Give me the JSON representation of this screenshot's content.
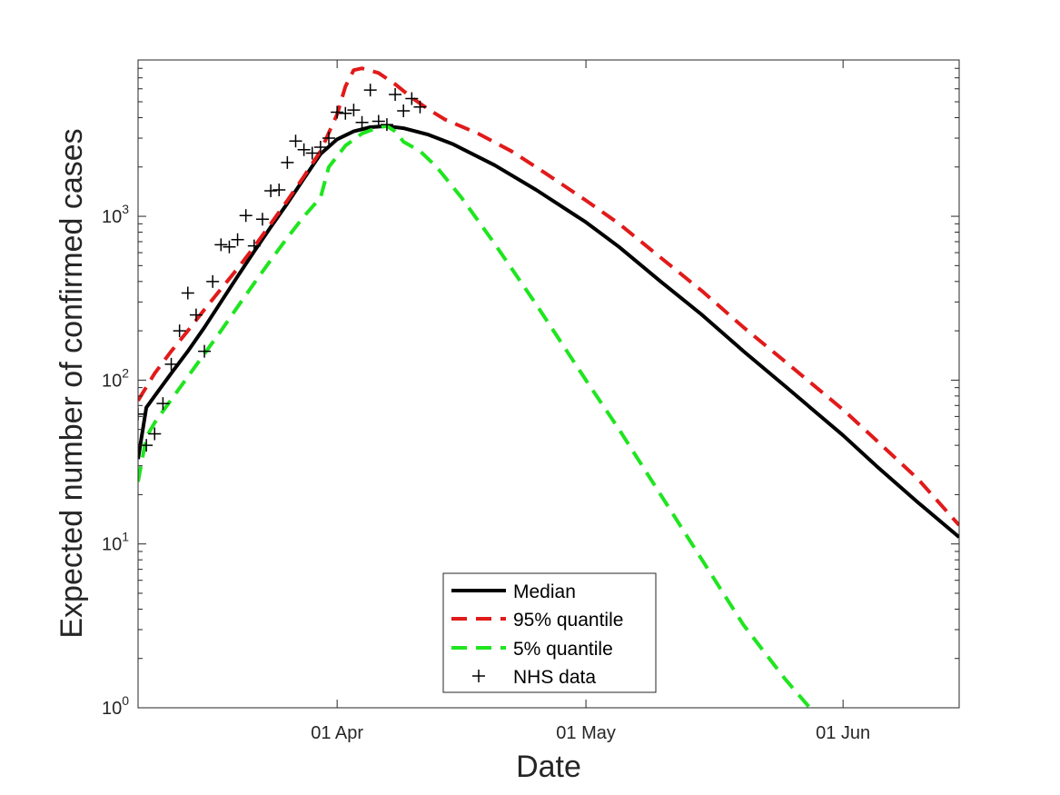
{
  "chart_data": {
    "type": "line",
    "xlabel": "Date",
    "ylabel": "Expected number of confirmed cases",
    "yscale": "log",
    "xlim": [
      "2020-03-08",
      "2020-06-15"
    ],
    "ylim": [
      1,
      9000
    ],
    "grid": false,
    "legend_position": "bottom-center",
    "x_ticks": [
      {
        "date": "2020-04-01",
        "label": "01 Apr"
      },
      {
        "date": "2020-05-01",
        "label": "01 May"
      },
      {
        "date": "2020-06-01",
        "label": "01 Jun"
      }
    ],
    "y_ticks": [
      {
        "value": 1,
        "base": "10",
        "exp": "0"
      },
      {
        "value": 10,
        "base": "10",
        "exp": "1"
      },
      {
        "value": 100,
        "base": "10",
        "exp": "2"
      },
      {
        "value": 1000,
        "base": "10",
        "exp": "3"
      }
    ],
    "series": [
      {
        "name": "Median",
        "color": "#000000",
        "style": "solid",
        "points": [
          [
            "2020-03-08",
            33
          ],
          [
            "2020-03-09",
            68
          ],
          [
            "2020-03-10",
            80
          ],
          [
            "2020-03-12",
            110
          ],
          [
            "2020-03-14",
            150
          ],
          [
            "2020-03-16",
            210
          ],
          [
            "2020-03-18",
            300
          ],
          [
            "2020-03-20",
            430
          ],
          [
            "2020-03-22",
            610
          ],
          [
            "2020-03-24",
            860
          ],
          [
            "2020-03-26",
            1200
          ],
          [
            "2020-03-28",
            1700
          ],
          [
            "2020-03-30",
            2400
          ],
          [
            "2020-04-01",
            2950
          ],
          [
            "2020-04-03",
            3300
          ],
          [
            "2020-04-05",
            3500
          ],
          [
            "2020-04-07",
            3550
          ],
          [
            "2020-04-09",
            3450
          ],
          [
            "2020-04-12",
            3150
          ],
          [
            "2020-04-15",
            2750
          ],
          [
            "2020-04-20",
            2050
          ],
          [
            "2020-04-25",
            1450
          ],
          [
            "2020-05-01",
            920
          ],
          [
            "2020-05-05",
            650
          ],
          [
            "2020-05-10",
            400
          ],
          [
            "2020-05-15",
            250
          ],
          [
            "2020-05-20",
            150
          ],
          [
            "2020-05-25",
            92
          ],
          [
            "2020-06-01",
            46
          ],
          [
            "2020-06-05",
            30
          ],
          [
            "2020-06-10",
            18
          ],
          [
            "2020-06-15",
            11
          ]
        ]
      },
      {
        "name": "95% quantile",
        "color": "#e11a1a",
        "style": "dashed",
        "points": [
          [
            "2020-03-08",
            75
          ],
          [
            "2020-03-10",
            110
          ],
          [
            "2020-03-12",
            150
          ],
          [
            "2020-03-14",
            200
          ],
          [
            "2020-03-16",
            270
          ],
          [
            "2020-03-18",
            360
          ],
          [
            "2020-03-20",
            480
          ],
          [
            "2020-03-22",
            650
          ],
          [
            "2020-03-24",
            900
          ],
          [
            "2020-03-26",
            1250
          ],
          [
            "2020-03-28",
            1750
          ],
          [
            "2020-03-30",
            2500
          ],
          [
            "2020-04-01",
            4200
          ],
          [
            "2020-04-02",
            6200
          ],
          [
            "2020-04-03",
            7800
          ],
          [
            "2020-04-04",
            8000
          ],
          [
            "2020-04-06",
            7500
          ],
          [
            "2020-04-08",
            6400
          ],
          [
            "2020-04-10",
            5300
          ],
          [
            "2020-04-12",
            4500
          ],
          [
            "2020-04-14",
            3900
          ],
          [
            "2020-04-18",
            3200
          ],
          [
            "2020-04-22",
            2500
          ],
          [
            "2020-04-26",
            1850
          ],
          [
            "2020-05-01",
            1250
          ],
          [
            "2020-05-05",
            900
          ],
          [
            "2020-05-10",
            560
          ],
          [
            "2020-05-15",
            350
          ],
          [
            "2020-05-20",
            210
          ],
          [
            "2020-05-25",
            130
          ],
          [
            "2020-06-01",
            66
          ],
          [
            "2020-06-05",
            43
          ],
          [
            "2020-06-10",
            25
          ],
          [
            "2020-06-15",
            13
          ]
        ]
      },
      {
        "name": "5% quantile",
        "color": "#1fe51f",
        "style": "dashed",
        "points": [
          [
            "2020-03-08",
            24
          ],
          [
            "2020-03-09",
            45
          ],
          [
            "2020-03-10",
            55
          ],
          [
            "2020-03-12",
            76
          ],
          [
            "2020-03-14",
            105
          ],
          [
            "2020-03-16",
            145
          ],
          [
            "2020-03-18",
            200
          ],
          [
            "2020-03-20",
            280
          ],
          [
            "2020-03-22",
            390
          ],
          [
            "2020-03-24",
            540
          ],
          [
            "2020-03-26",
            740
          ],
          [
            "2020-03-28",
            1000
          ],
          [
            "2020-03-30",
            1300
          ],
          [
            "2020-03-31",
            2000
          ],
          [
            "2020-04-02",
            2700
          ],
          [
            "2020-04-04",
            3200
          ],
          [
            "2020-04-06",
            3500
          ],
          [
            "2020-04-07",
            3550
          ],
          [
            "2020-04-08",
            3300
          ],
          [
            "2020-04-09",
            2850
          ],
          [
            "2020-04-11",
            2500
          ],
          [
            "2020-04-13",
            2000
          ],
          [
            "2020-04-16",
            1300
          ],
          [
            "2020-04-20",
            680
          ],
          [
            "2020-04-25",
            290
          ],
          [
            "2020-05-01",
            100
          ],
          [
            "2020-05-05",
            50
          ],
          [
            "2020-05-10",
            20
          ],
          [
            "2020-05-15",
            8
          ],
          [
            "2020-05-20",
            3.2
          ],
          [
            "2020-05-25",
            1.5
          ],
          [
            "2020-05-28",
            1.0
          ]
        ]
      },
      {
        "name": "NHS data",
        "color": "#000000",
        "style": "marker-plus",
        "points": [
          [
            "2020-03-08",
            62
          ],
          [
            "2020-03-09",
            40
          ],
          [
            "2020-03-10",
            47
          ],
          [
            "2020-03-11",
            72
          ],
          [
            "2020-03-12",
            125
          ],
          [
            "2020-03-13",
            200
          ],
          [
            "2020-03-14",
            340
          ],
          [
            "2020-03-15",
            250
          ],
          [
            "2020-03-16",
            150
          ],
          [
            "2020-03-17",
            400
          ],
          [
            "2020-03-18",
            670
          ],
          [
            "2020-03-19",
            650
          ],
          [
            "2020-03-20",
            720
          ],
          [
            "2020-03-21",
            1010
          ],
          [
            "2020-03-22",
            660
          ],
          [
            "2020-03-23",
            960
          ],
          [
            "2020-03-24",
            1430
          ],
          [
            "2020-03-25",
            1450
          ],
          [
            "2020-03-26",
            2130
          ],
          [
            "2020-03-27",
            2880
          ],
          [
            "2020-03-28",
            2550
          ],
          [
            "2020-03-29",
            2430
          ],
          [
            "2020-03-30",
            2640
          ],
          [
            "2020-03-31",
            3000
          ],
          [
            "2020-04-01",
            4320
          ],
          [
            "2020-04-02",
            4250
          ],
          [
            "2020-04-03",
            4450
          ],
          [
            "2020-04-04",
            3740
          ],
          [
            "2020-04-05",
            5900
          ],
          [
            "2020-04-06",
            3800
          ],
          [
            "2020-04-07",
            3630
          ],
          [
            "2020-04-08",
            5540
          ],
          [
            "2020-04-09",
            4400
          ],
          [
            "2020-04-10",
            5230
          ],
          [
            "2020-04-11",
            4650
          ]
        ]
      }
    ]
  }
}
